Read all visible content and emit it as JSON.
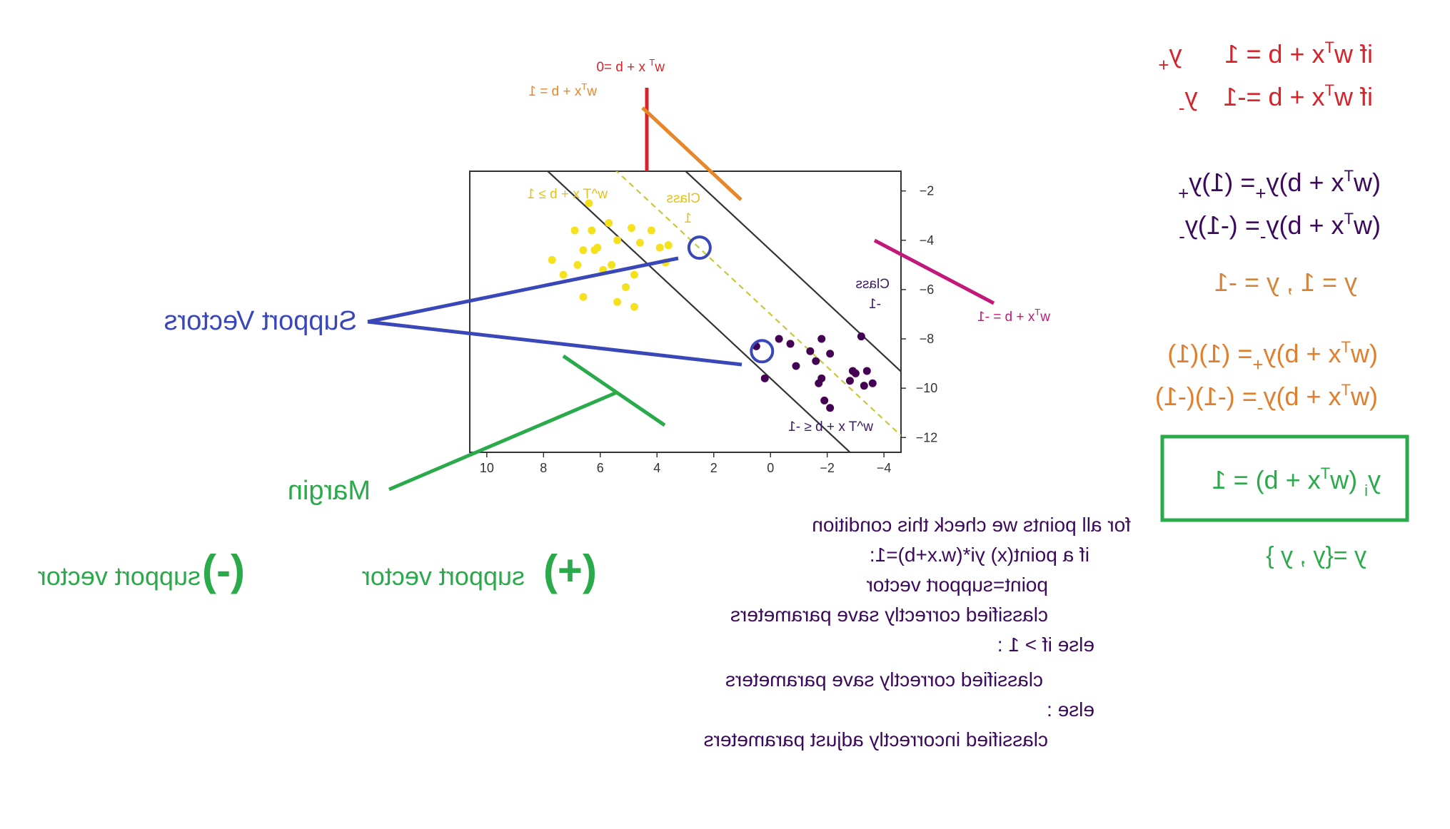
{
  "chart_data": {
    "type": "scatter",
    "xlim": [
      -4.6,
      10.6
    ],
    "ylim": [
      -12.6,
      -1.2
    ],
    "x_ticks": [
      "10",
      "8",
      "6",
      "4",
      "2",
      "0",
      "−2",
      "−4"
    ],
    "y_ticks": [
      "−2",
      "−4",
      "−6",
      "−8",
      "−10",
      "−12"
    ],
    "grid": false,
    "series": [
      {
        "name": "Class 1",
        "color": "#f5e11e",
        "points": [
          [
            6.4,
            -2.5
          ],
          [
            6.9,
            -3.6
          ],
          [
            6.3,
            -3.6
          ],
          [
            5.7,
            -3.3
          ],
          [
            4.9,
            -3.5
          ],
          [
            4.2,
            -3.6
          ],
          [
            3.9,
            -4.3
          ],
          [
            6.6,
            -4.4
          ],
          [
            6.2,
            -4.4
          ],
          [
            6.1,
            -4.3
          ],
          [
            5.4,
            -4.0
          ],
          [
            4.6,
            -4.1
          ],
          [
            7.7,
            -4.8
          ],
          [
            6.8,
            -5.0
          ],
          [
            5.6,
            -5.0
          ],
          [
            5.9,
            -5.2
          ],
          [
            4.8,
            -5.4
          ],
          [
            7.3,
            -5.4
          ],
          [
            5.1,
            -5.9
          ],
          [
            5.4,
            -6.5
          ],
          [
            6.6,
            -6.3
          ],
          [
            4.8,
            -6.7
          ],
          [
            3.6,
            -4.2
          ],
          [
            3.7,
            -4.9
          ]
        ]
      },
      {
        "name": "Class -1",
        "color": "#440154",
        "points": [
          [
            0.5,
            -8.3
          ],
          [
            -0.7,
            -8.2
          ],
          [
            -1.8,
            -8.0
          ],
          [
            -3.2,
            -7.9
          ],
          [
            -0.3,
            -8.0
          ],
          [
            -2.1,
            -8.6
          ],
          [
            -1.4,
            -8.5
          ],
          [
            -1.6,
            -8.9
          ],
          [
            -0.9,
            -9.1
          ],
          [
            -2.9,
            -9.3
          ],
          [
            -3.0,
            -9.4
          ],
          [
            -2.8,
            -9.7
          ],
          [
            -3.6,
            -9.8
          ],
          [
            -1.8,
            -9.6
          ],
          [
            -1.7,
            -9.8
          ],
          [
            0.2,
            -9.6
          ],
          [
            -3.3,
            -9.9
          ],
          [
            -1.9,
            -10.5
          ],
          [
            -2.1,
            -10.8
          ],
          [
            -3.4,
            -9.3
          ]
        ]
      }
    ],
    "boundary_lines": [
      {
        "equation": "w^T x + b = 1",
        "color": "#333333",
        "dash": "solid"
      },
      {
        "equation": "w^T x + b = 0",
        "color": "#c9c73a",
        "dash": "dashed"
      },
      {
        "equation": "w^T x + b = -1",
        "color": "#333333",
        "dash": "solid"
      }
    ],
    "support_vectors": [
      [
        2.5,
        -4.3
      ],
      [
        0.3,
        -8.5
      ]
    ],
    "annotations": {
      "class1_region": "w^T x + b ≥ 1",
      "class_minus1_region": "w^T x + b ≤ -1",
      "class1_label": "Class 1",
      "class_minus1_label": "Class -1"
    }
  },
  "colors": {
    "red": "#d8232a",
    "orange": "#e8862a",
    "magenta": "#c2187a",
    "blue": "#3a47b8",
    "green": "#2aaa4a",
    "purple": "#3b0a5c",
    "brown_orange": "#d5843b",
    "yellow": "#f5e11e",
    "dark_purple": "#440154"
  },
  "labels": {
    "support_vectors": "Support Vectors",
    "margin": "Margin",
    "plus_support": "(+) support vector",
    "minus_support": "(-) support vector",
    "plus_sign": "(+)",
    "plus_text": "support vector",
    "minus_sign": "(-)",
    "minus_text": "support vector",
    "line_eq_zero": "w",
    "class1_title": "Class",
    "class1_num": "1",
    "class_minus1_title": "Class",
    "class_minus1_num": "-1"
  },
  "equations": {
    "eq_plus": "if w",
    "eq_plus_rest": "x + b = 1",
    "eq_plus_target": "y",
    "eq_minus": "if w",
    "eq_minus_rest": "x + b =-1",
    "eq_minus_target": "y",
    "mult_plus_left": "(w",
    "mult_plus_mid": "x + b)y",
    "mult_plus_right": "= (1)y",
    "mult_minus_left": "(w",
    "mult_minus_mid": "x + b)y",
    "mult_minus_right": "= (-1)y",
    "values_line": "y  = 1 , y  = -1",
    "sub_plus_left": "(w",
    "sub_plus_mid": "x + b)y",
    "sub_plus_right": "= (1)(1)",
    "sub_minus_left": "(w",
    "sub_minus_mid": "x + b)y",
    "sub_minus_right": "= (-1)(-1)",
    "boxed_left": "y",
    "boxed_mid": " (w",
    "boxed_right": "x + b) = 1",
    "set_def": "y  ={y  , y }"
  },
  "pseudocode": {
    "line1": "for all points we check this condition",
    "line2": "if  a point(x) yi*(w.x+b)=1:",
    "line3": "point=support vector",
    "line4": "classified correctly save parameters",
    "line5": "else if  > 1 :",
    "line6": "classified correctly save parameters",
    "line7": "else :",
    "line8": "classified incorrectly adjust parameters"
  }
}
